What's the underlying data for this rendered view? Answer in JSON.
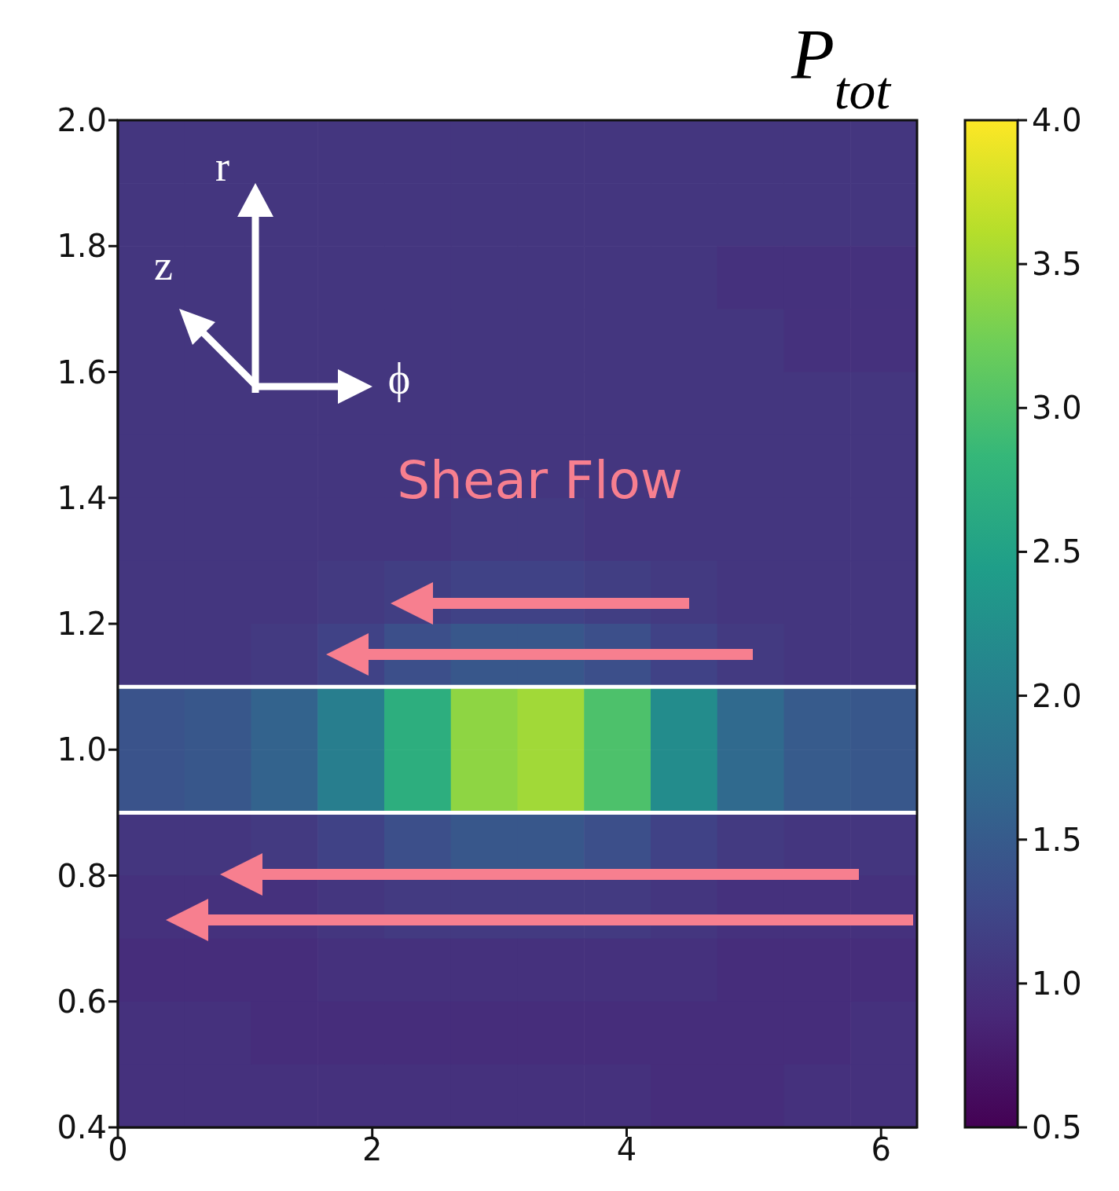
{
  "chart_data": {
    "type": "heatmap",
    "clabel": "P$_{tot}$",
    "annotations": [
      "r",
      "z",
      "ϕ",
      "Shear Flow"
    ],
    "xlim": [
      0,
      6.283
    ],
    "xticks": [
      0,
      2,
      4,
      6
    ],
    "ylim": [
      0.4,
      2.0
    ],
    "yticks": [
      0.4,
      0.6,
      0.8,
      {
        "value": 1,
        "label": "1.0"
      },
      1.2,
      1.4,
      1.6,
      1.8,
      {
        "value": 2,
        "label": "2.0"
      }
    ],
    "clim": [
      0.5,
      4.0
    ],
    "cticks": [
      0.5,
      {
        "value": 1,
        "label": "1.0"
      },
      1.5,
      {
        "value": 2,
        "label": "2.0"
      },
      2.5,
      {
        "value": 3,
        "label": "3.0"
      },
      3.5,
      {
        "value": 4,
        "label": "4.0"
      }
    ],
    "ref_lines": [
      {
        "axis": "y",
        "value": 1.1,
        "color": "#ffffff"
      },
      {
        "axis": "y",
        "value": 0.9,
        "color": "#ffffff"
      }
    ],
    "cells": [
      [
        1.05,
        1.05,
        1.05,
        1.05,
        1.05,
        1.05,
        1.05,
        1.05,
        1.05,
        1.05,
        1.05,
        1.05
      ],
      [
        1.05,
        1.05,
        1.05,
        1.05,
        1.05,
        1.05,
        1.05,
        1.05,
        1.05,
        1.05,
        1.05,
        1.05
      ],
      [
        1.05,
        1.05,
        1.05,
        1.05,
        1.05,
        1.05,
        1.05,
        1.05,
        1.05,
        1.0,
        1.0,
        1.0
      ],
      [
        1.05,
        1.05,
        1.05,
        1.05,
        1.05,
        1.05,
        1.05,
        1.05,
        1.05,
        1.05,
        1.0,
        1.0
      ],
      [
        1.05,
        1.05,
        1.05,
        1.05,
        1.05,
        1.05,
        1.05,
        1.05,
        1.05,
        1.05,
        1.05,
        1.05
      ],
      [
        1.05,
        1.05,
        1.05,
        1.05,
        1.05,
        1.05,
        1.05,
        1.05,
        1.05,
        1.05,
        1.05,
        1.05
      ],
      [
        1.05,
        1.05,
        1.05,
        1.05,
        1.05,
        1.1,
        1.1,
        1.05,
        1.05,
        1.05,
        1.05,
        1.05
      ],
      [
        1.05,
        1.05,
        1.05,
        1.1,
        1.15,
        1.2,
        1.2,
        1.15,
        1.1,
        1.05,
        1.05,
        1.05
      ],
      [
        1.05,
        1.05,
        1.1,
        1.2,
        1.35,
        1.45,
        1.45,
        1.35,
        1.2,
        1.1,
        1.05,
        1.05
      ],
      [
        1.4,
        1.45,
        1.6,
        2.0,
        2.7,
        3.4,
        3.5,
        3.0,
        2.2,
        1.7,
        1.5,
        1.45
      ],
      [
        1.4,
        1.45,
        1.6,
        2.0,
        2.7,
        3.4,
        3.5,
        3.0,
        2.2,
        1.7,
        1.5,
        1.45
      ],
      [
        1.05,
        1.05,
        1.1,
        1.2,
        1.35,
        1.45,
        1.45,
        1.35,
        1.2,
        1.1,
        1.05,
        1.05
      ],
      [
        1.0,
        1.0,
        1.0,
        1.05,
        1.1,
        1.1,
        1.1,
        1.1,
        1.05,
        1.0,
        1.0,
        1.0
      ],
      [
        0.95,
        0.95,
        0.95,
        1.0,
        1.0,
        1.0,
        1.0,
        1.0,
        1.0,
        0.95,
        0.95,
        0.95
      ],
      [
        1.0,
        1.0,
        0.95,
        0.95,
        0.95,
        0.95,
        0.95,
        0.95,
        0.95,
        0.95,
        0.95,
        1.0
      ],
      [
        1.0,
        1.0,
        1.0,
        1.0,
        1.0,
        1.0,
        1.0,
        1.0,
        0.95,
        0.95,
        1.0,
        1.0
      ]
    ]
  }
}
